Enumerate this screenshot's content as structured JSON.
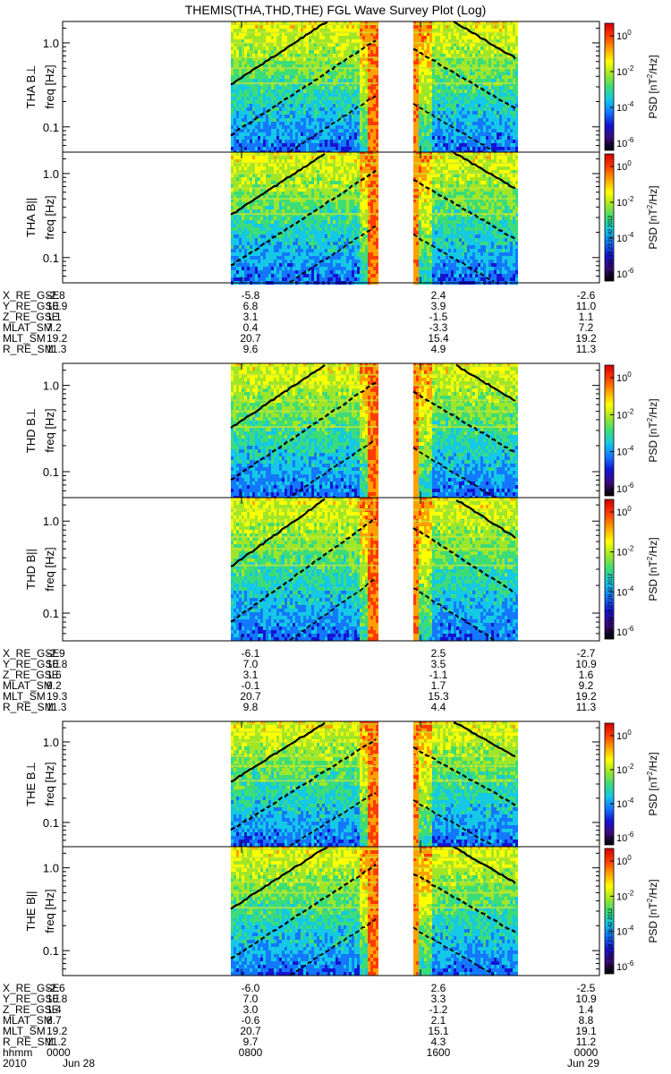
{
  "title": "THEMIS(THA,THD,THE) FGL Wave Survey Plot (Log)",
  "timestamp": "Sun Sep 18 23:26:42 2012",
  "colorbar": {
    "label_prefix": "PSD [nT",
    "label_sup": "2",
    "label_suffix": "/Hz]",
    "ticks": [
      {
        "base": "10",
        "exp": "0"
      },
      {
        "base": "10",
        "exp": "-2"
      },
      {
        "base": "10",
        "exp": "-4"
      },
      {
        "base": "10",
        "exp": "-6"
      }
    ],
    "colors": [
      "#000000",
      "#3c0a7a",
      "#1414d2",
      "#1478ff",
      "#14c8e6",
      "#3cdc78",
      "#a0e628",
      "#ffff00",
      "#ffa000",
      "#ff3c00",
      "#d20000"
    ]
  },
  "chart_data": {
    "type": "heatmap",
    "x_axis": {
      "tick_labels": [
        "0000",
        "0800",
        "1600",
        "0000"
      ],
      "dates": [
        "Jun 28",
        "Jun 29"
      ],
      "year": "2010",
      "row_label": "hhmm"
    },
    "y_axis": {
      "label": "freq [Hz]",
      "scale": "log",
      "range": [
        0.05,
        1.8
      ],
      "ticks": [
        "1.0",
        "0.1"
      ]
    },
    "zlim": [
      "1e-6",
      "1e1"
    ],
    "panels": [
      {
        "probe": "THA",
        "sym": "⊥",
        "ylabel": "THA B"
      },
      {
        "probe": "THA",
        "sym": "||",
        "ylabel": "THA B"
      },
      {
        "probe": "THD",
        "sym": "⊥",
        "ylabel": "THD B"
      },
      {
        "probe": "THD",
        "sym": "||",
        "ylabel": "THD B"
      },
      {
        "probe": "THE",
        "sym": "⊥",
        "ylabel": "THE B"
      },
      {
        "probe": "THE",
        "sym": "||",
        "ylabel": "THE B"
      }
    ],
    "ephemeris": [
      {
        "probe": "THA",
        "rows": [
          {
            "label": "X_RE_GSE",
            "values": [
              "-2.8",
              "-5.8",
              "2.4",
              "-2.6"
            ]
          },
          {
            "label": "Y_RE_GSE",
            "values": [
              "10.9",
              "6.8",
              "3.9",
              "11.0"
            ]
          },
          {
            "label": "Z_RE_GSE",
            "values": [
              "1.1",
              "3.1",
              "-1.5",
              "1.1"
            ]
          },
          {
            "label": "MLAT_SM",
            "values": [
              "7.2",
              "0.4",
              "-3.3",
              "7.2"
            ]
          },
          {
            "label": "MLT_SM",
            "values": [
              "19.2",
              "20.7",
              "15.4",
              "19.2"
            ]
          },
          {
            "label": "R_RE_SM",
            "values": [
              "11.3",
              "9.6",
              "4.9",
              "11.3"
            ]
          }
        ]
      },
      {
        "probe": "THD",
        "rows": [
          {
            "label": "X_RE_GSE",
            "values": [
              "-2.9",
              "-6.1",
              "2.5",
              "-2.7"
            ]
          },
          {
            "label": "Y_RE_GSE",
            "values": [
              "10.8",
              "7.0",
              "3.5",
              "10.9"
            ]
          },
          {
            "label": "Z_RE_GSE",
            "values": [
              "1.6",
              "3.1",
              "-1.1",
              "1.6"
            ]
          },
          {
            "label": "MLAT_SM",
            "values": [
              "9.2",
              "-0.1",
              "1.7",
              "9.2"
            ]
          },
          {
            "label": "MLT_SM",
            "values": [
              "19.3",
              "20.7",
              "15.3",
              "19.2"
            ]
          },
          {
            "label": "R_RE_SM",
            "values": [
              "11.3",
              "9.8",
              "4.4",
              "11.3"
            ]
          }
        ]
      },
      {
        "probe": "THE",
        "rows": [
          {
            "label": "X_RE_GSE",
            "values": [
              "-2.6",
              "-6.0",
              "2.6",
              "-2.5"
            ]
          },
          {
            "label": "Y_RE_GSE",
            "values": [
              "10.8",
              "7.0",
              "3.3",
              "10.9"
            ]
          },
          {
            "label": "Z_RE_GSE",
            "values": [
              "1.4",
              "3.0",
              "-1.2",
              "1.4"
            ]
          },
          {
            "label": "MLAT_SM",
            "values": [
              "8.7",
              "-0.6",
              "2.1",
              "8.8"
            ]
          },
          {
            "label": "MLT_SM",
            "values": [
              "19.2",
              "20.7",
              "15.1",
              "19.1"
            ]
          },
          {
            "label": "R_RE_SM",
            "values": [
              "11.2",
              "9.7",
              "4.3",
              "11.2"
            ]
          }
        ]
      }
    ]
  }
}
